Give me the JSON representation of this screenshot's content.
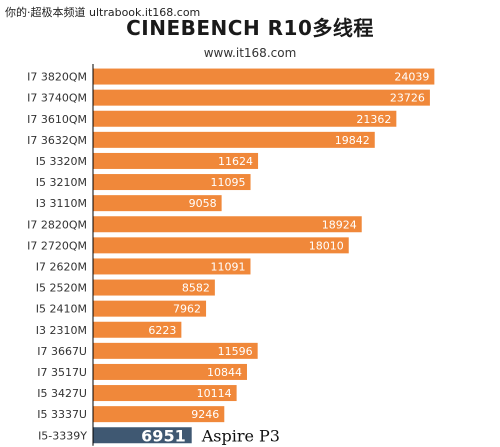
{
  "header": {
    "watermark": "你的·超极本频道 ultrabook.it168.com",
    "title": "CINEBENCH R10多线程",
    "subtitle": "www.it168.com"
  },
  "colors": {
    "bar": "#F0883A",
    "highlight_bar": "#3F5872",
    "axis": "#000000",
    "bar_text": "#ffffff",
    "label_text": "#333333"
  },
  "chart_data": {
    "type": "bar",
    "orientation": "horizontal",
    "title": "CINEBENCH R10多线程",
    "xlabel": "",
    "ylabel": "",
    "xlim": [
      0,
      25000
    ],
    "categories": [
      "I7 3820QM",
      "I7 3740QM",
      "I7 3610QM",
      "I7 3632QM",
      "I5 3320M",
      "I5 3210M",
      "I3 3110M",
      "I7 2820QM",
      "I7 2720QM",
      "I7 2620M",
      "I5 2520M",
      "I5 2410M",
      "I3 2310M",
      "I7 3667U",
      "I7 3517U",
      "I5 3427U",
      "I5 3337U",
      "I5-3339Y"
    ],
    "values": [
      24039,
      23726,
      21362,
      19842,
      11624,
      11095,
      9058,
      18924,
      18010,
      11091,
      8582,
      7962,
      6223,
      11596,
      10844,
      10114,
      9246,
      6951
    ],
    "highlight": {
      "category": "I5-3339Y",
      "value": 6951,
      "label": "Aspire P3"
    }
  }
}
